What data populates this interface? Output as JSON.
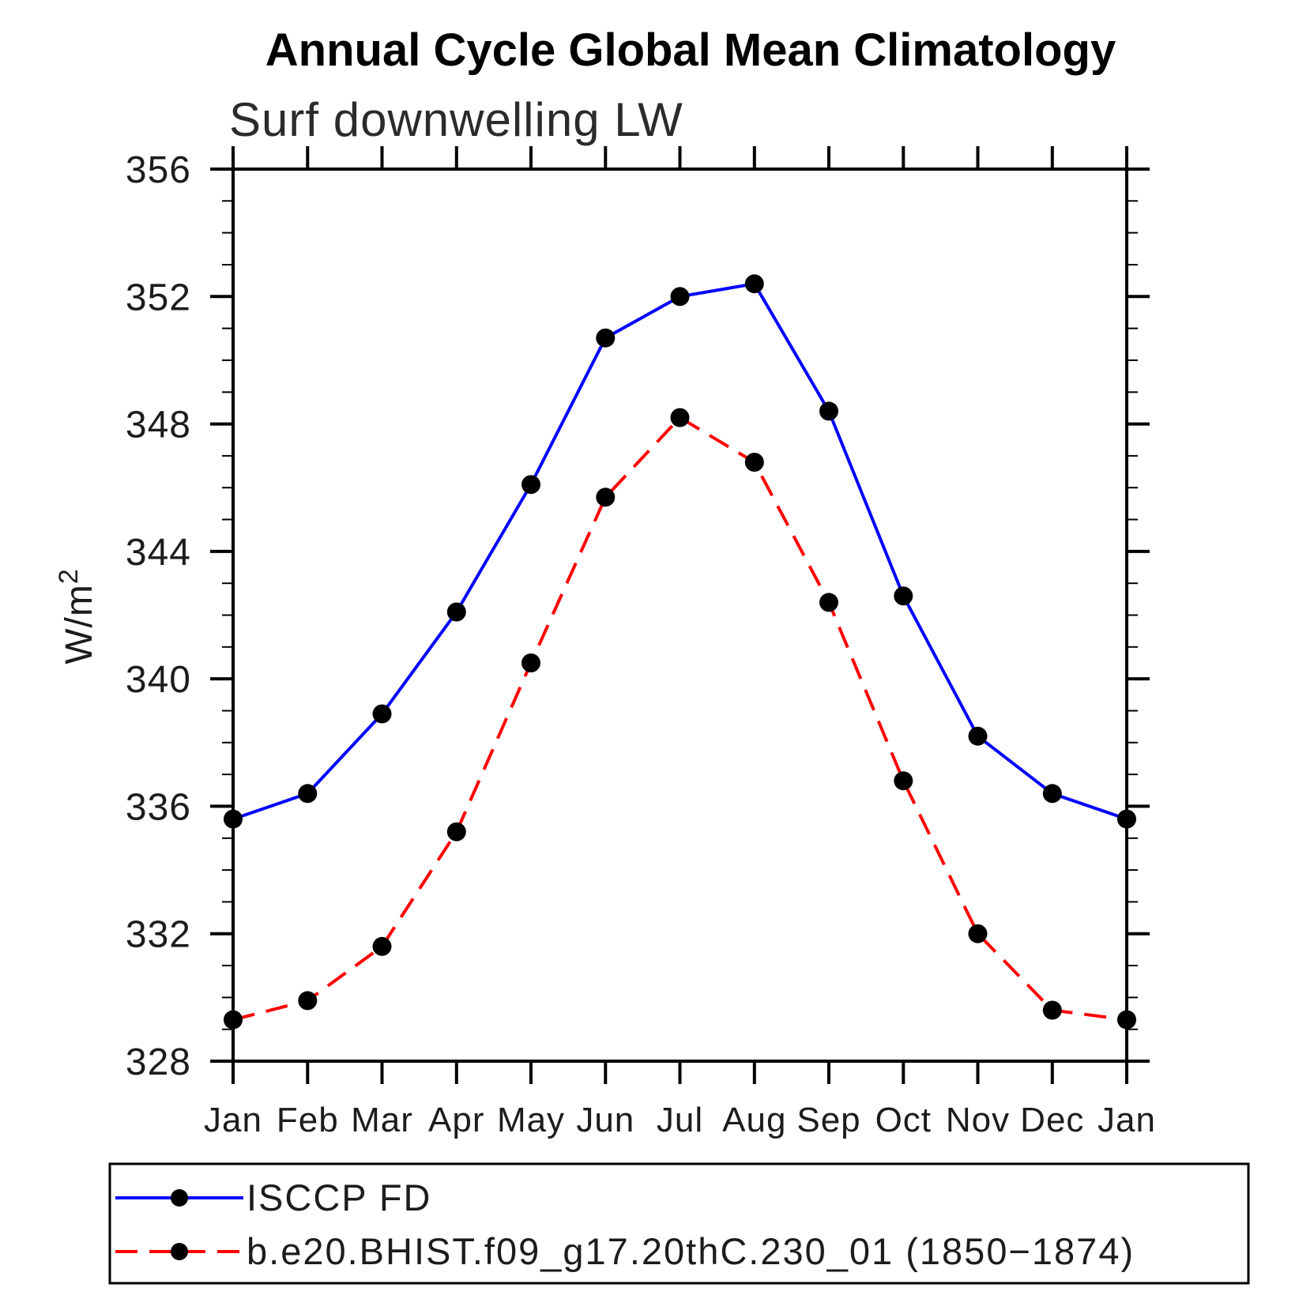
{
  "chart_data": {
    "type": "line",
    "title": "Annual Cycle Global Mean Climatology",
    "subtitle": "Surf downwelling LW",
    "ylabel_base": "W/m",
    "ylabel_exponent": "2",
    "ylabel": "W/m2",
    "x_categories": [
      "Jan",
      "Feb",
      "Mar",
      "Apr",
      "May",
      "Jun",
      "Jul",
      "Aug",
      "Sep",
      "Oct",
      "Nov",
      "Dec",
      "Jan"
    ],
    "ylim": [
      328,
      356
    ],
    "ytick_major": [
      328,
      332,
      336,
      340,
      344,
      348,
      352,
      356
    ],
    "ytick_minor_interval": 1,
    "grid": "off",
    "legend_position": "bottom-left-box",
    "marker": "filled-circle",
    "marker_color": "#000000",
    "series": [
      {
        "name": "ISCCP FD",
        "color": "#0000ff",
        "line_style": "solid",
        "values": [
          335.6,
          336.4,
          338.9,
          342.1,
          346.1,
          350.7,
          352.0,
          352.4,
          348.4,
          342.6,
          338.2,
          336.4,
          335.6
        ]
      },
      {
        "name": "b.e20.BHIST.f09_g17.20thC.230_01 (1850−1874)",
        "color": "#ff0000",
        "line_style": "dashed",
        "values": [
          329.3,
          329.9,
          331.6,
          335.2,
          340.5,
          345.7,
          348.2,
          346.8,
          342.4,
          336.8,
          332.0,
          329.6,
          329.3
        ]
      }
    ]
  }
}
